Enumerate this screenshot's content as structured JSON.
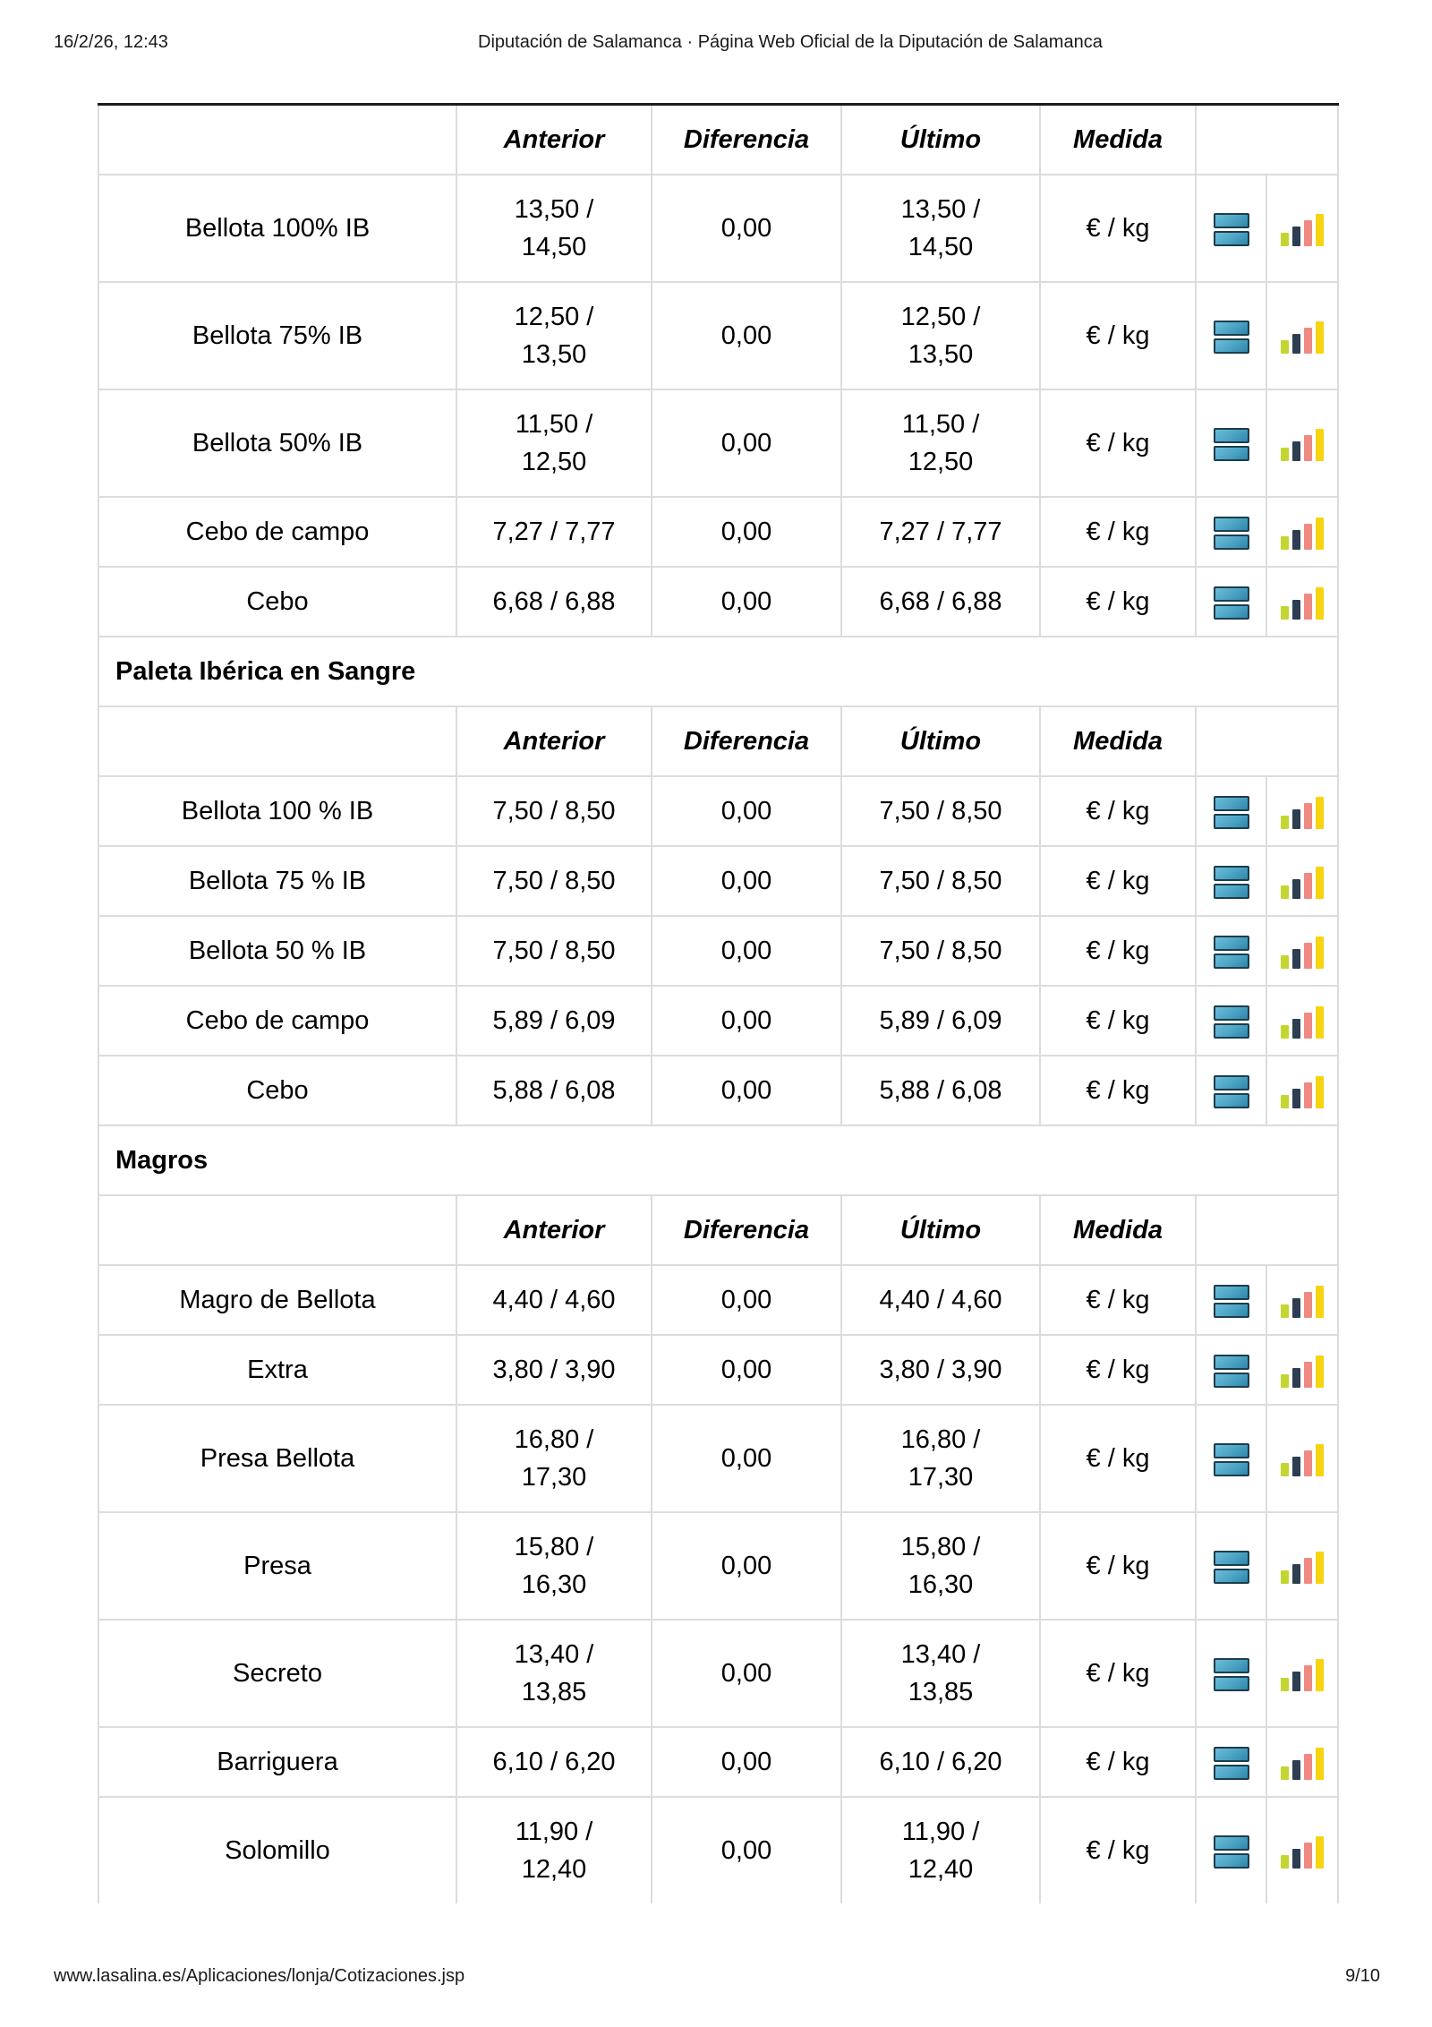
{
  "page": {
    "print_date": "16/2/26, 12:43",
    "print_title": "Diputación de Salamanca · Página Web Oficial de la Diputación de Salamanca",
    "footer_url": "www.lasalina.es/Aplicaciones/lonja/Cotizaciones.jsp",
    "footer_page": "9/10"
  },
  "colors": {
    "accent_blue": "#4aa3c4",
    "icon_border": "#1d3d4c",
    "bar_green": "#c3d62f",
    "bar_navy": "#2c3e50",
    "bar_salmon": "#ee8a82",
    "bar_yellow": "#f6d410",
    "grid": "#dcdcdc",
    "top_border": "#1c1c1c"
  },
  "icons": {
    "table_icon": "table-view-icon",
    "chart_icon": "bar-chart-icon"
  },
  "table": {
    "column_headers": {
      "item": "",
      "anterior": "Anterior",
      "diferencia": "Diferencia",
      "ultimo": "Último",
      "medida": "Medida"
    },
    "sections": [
      {
        "title": null,
        "rows": [
          {
            "name": "Bellota 100% IB",
            "anterior": "13,50 /\n14,50",
            "diferencia": "0,00",
            "ultimo": "13,50 /\n14,50",
            "medida": "€ / kg"
          },
          {
            "name": "Bellota 75% IB",
            "anterior": "12,50 /\n13,50",
            "diferencia": "0,00",
            "ultimo": "12,50 /\n13,50",
            "medida": "€ / kg"
          },
          {
            "name": "Bellota 50% IB",
            "anterior": "11,50 /\n12,50",
            "diferencia": "0,00",
            "ultimo": "11,50 /\n12,50",
            "medida": "€ / kg"
          },
          {
            "name": "Cebo de campo",
            "anterior": "7,27 / 7,77",
            "diferencia": "0,00",
            "ultimo": "7,27 / 7,77",
            "medida": "€ / kg"
          },
          {
            "name": "Cebo",
            "anterior": "6,68 / 6,88",
            "diferencia": "0,00",
            "ultimo": "6,68 / 6,88",
            "medida": "€ / kg"
          }
        ]
      },
      {
        "title": "Paleta Ibérica en Sangre",
        "rows": [
          {
            "name": "Bellota 100 % IB",
            "anterior": "7,50 / 8,50",
            "diferencia": "0,00",
            "ultimo": "7,50 / 8,50",
            "medida": "€ / kg"
          },
          {
            "name": "Bellota 75 % IB",
            "anterior": "7,50 / 8,50",
            "diferencia": "0,00",
            "ultimo": "7,50 / 8,50",
            "medida": "€ / kg"
          },
          {
            "name": "Bellota 50 % IB",
            "anterior": "7,50 / 8,50",
            "diferencia": "0,00",
            "ultimo": "7,50 / 8,50",
            "medida": "€ / kg"
          },
          {
            "name": "Cebo de campo",
            "anterior": "5,89 / 6,09",
            "diferencia": "0,00",
            "ultimo": "5,89 / 6,09",
            "medida": "€ / kg"
          },
          {
            "name": "Cebo",
            "anterior": "5,88 / 6,08",
            "diferencia": "0,00",
            "ultimo": "5,88 / 6,08",
            "medida": "€ / kg"
          }
        ]
      },
      {
        "title": "Magros",
        "rows": [
          {
            "name": "Magro de Bellota",
            "anterior": "4,40 / 4,60",
            "diferencia": "0,00",
            "ultimo": "4,40 / 4,60",
            "medida": "€ / kg"
          },
          {
            "name": "Extra",
            "anterior": "3,80 / 3,90",
            "diferencia": "0,00",
            "ultimo": "3,80 / 3,90",
            "medida": "€ / kg"
          },
          {
            "name": "Presa Bellota",
            "anterior": "16,80 /\n17,30",
            "diferencia": "0,00",
            "ultimo": "16,80 /\n17,30",
            "medida": "€ / kg"
          },
          {
            "name": "Presa",
            "anterior": "15,80 /\n16,30",
            "diferencia": "0,00",
            "ultimo": "15,80 /\n16,30",
            "medida": "€ / kg"
          },
          {
            "name": "Secreto",
            "anterior": "13,40 /\n13,85",
            "diferencia": "0,00",
            "ultimo": "13,40 /\n13,85",
            "medida": "€ / kg"
          },
          {
            "name": "Barriguera",
            "anterior": "6,10 / 6,20",
            "diferencia": "0,00",
            "ultimo": "6,10 / 6,20",
            "medida": "€ / kg"
          },
          {
            "name": "Solomillo",
            "anterior": "11,90 /\n12,40",
            "diferencia": "0,00",
            "ultimo": "11,90 /\n12,40",
            "medida": "€ / kg"
          }
        ]
      }
    ]
  }
}
